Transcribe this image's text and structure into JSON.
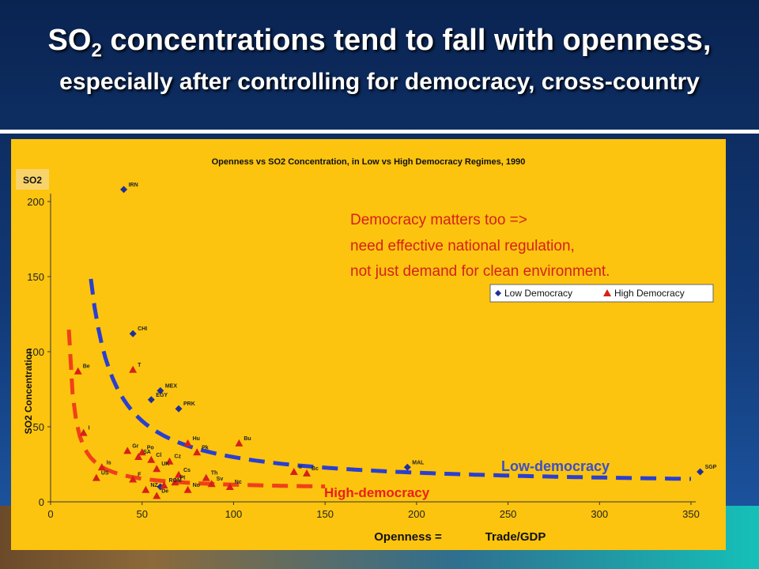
{
  "slide": {
    "title_main": "SO",
    "title_sub": "2",
    "title_rest": " concentrations tend to fall with openness,",
    "title_line2": "especially after controlling for democracy, cross-country"
  },
  "chart_data": {
    "type": "scatter",
    "title": "Openness vs SO2 Concentration, in Low vs High Democracy Regimes, 1990",
    "y_corner_label": "SO2",
    "ylabel": "SO2 Concentration",
    "xlabel_left": "Openness =",
    "xlabel_right": "Trade/GDP",
    "xlim": [
      0,
      360
    ],
    "ylim": [
      0,
      210
    ],
    "x_ticks": [
      0,
      50,
      100,
      150,
      200,
      250,
      300,
      350
    ],
    "y_ticks": [
      0,
      50,
      100,
      150,
      200
    ],
    "legend": {
      "position": "top-right",
      "items": [
        "Low Democracy",
        "High Democracy"
      ]
    },
    "series": [
      {
        "name": "Low Democracy",
        "color": "#1f2f9a",
        "marker": "diamond",
        "points": [
          {
            "x": 40,
            "y": 208,
            "label": "IRN"
          },
          {
            "x": 45,
            "y": 112,
            "label": "CHI"
          },
          {
            "x": 60,
            "y": 74,
            "label": "MEX"
          },
          {
            "x": 55,
            "y": 68,
            "label": "EGY"
          },
          {
            "x": 70,
            "y": 62,
            "label": "PRK"
          },
          {
            "x": 195,
            "y": 23,
            "label": "MAL"
          },
          {
            "x": 355,
            "y": 20,
            "label": "SGP"
          },
          {
            "x": 60,
            "y": 10,
            "label": ""
          }
        ]
      },
      {
        "name": "High Democracy",
        "color": "#d6201a",
        "marker": "triangle",
        "points": [
          {
            "x": 15,
            "y": 87,
            "label": "Be"
          },
          {
            "x": 45,
            "y": 88,
            "label": "T"
          },
          {
            "x": 18,
            "y": 46,
            "label": "I"
          },
          {
            "x": 42,
            "y": 34,
            "label": "Gr"
          },
          {
            "x": 50,
            "y": 33,
            "label": "Po"
          },
          {
            "x": 75,
            "y": 39,
            "label": "Hu"
          },
          {
            "x": 80,
            "y": 33,
            "label": "Pk"
          },
          {
            "x": 103,
            "y": 39,
            "label": "Bu"
          },
          {
            "x": 48,
            "y": 30,
            "label": "SA"
          },
          {
            "x": 55,
            "y": 28,
            "label": "Cl"
          },
          {
            "x": 65,
            "y": 27,
            "label": "Cz"
          },
          {
            "x": 28,
            "y": 23,
            "label": "Is"
          },
          {
            "x": 58,
            "y": 22,
            "label": "UK"
          },
          {
            "x": 70,
            "y": 18,
            "label": "Cs"
          },
          {
            "x": 85,
            "y": 16,
            "label": "Th"
          },
          {
            "x": 25,
            "y": 16,
            "label": "US"
          },
          {
            "x": 45,
            "y": 15,
            "label": "F"
          },
          {
            "x": 68,
            "y": 13,
            "label": "Pt"
          },
          {
            "x": 62,
            "y": 11,
            "label": "ROM"
          },
          {
            "x": 88,
            "y": 12,
            "label": "Sv"
          },
          {
            "x": 98,
            "y": 10,
            "label": "Nc"
          },
          {
            "x": 52,
            "y": 8,
            "label": "NZ"
          },
          {
            "x": 75,
            "y": 8,
            "label": "No"
          },
          {
            "x": 133,
            "y": 20,
            "label": "Ir"
          },
          {
            "x": 140,
            "y": 19,
            "label": "Bc"
          },
          {
            "x": 58,
            "y": 4,
            "label": "De"
          }
        ]
      }
    ],
    "annotations": [
      {
        "text": "Democracy matters too   =>",
        "color": "#d6201a"
      },
      {
        "text": "need effective national regulation,",
        "color": "#d6201a"
      },
      {
        "text": "not just demand for clean environment.",
        "color": "#d6201a"
      },
      {
        "text": "Low-democracy",
        "color": "#3b4fc8"
      },
      {
        "text": "High-democracy",
        "color": "#e8201a"
      }
    ],
    "fit_curves": [
      {
        "name": "Low-democracy",
        "color": "#2a3fd0",
        "style": "dashed"
      },
      {
        "name": "High-democracy",
        "color": "#f0401a",
        "style": "dashed"
      }
    ]
  }
}
